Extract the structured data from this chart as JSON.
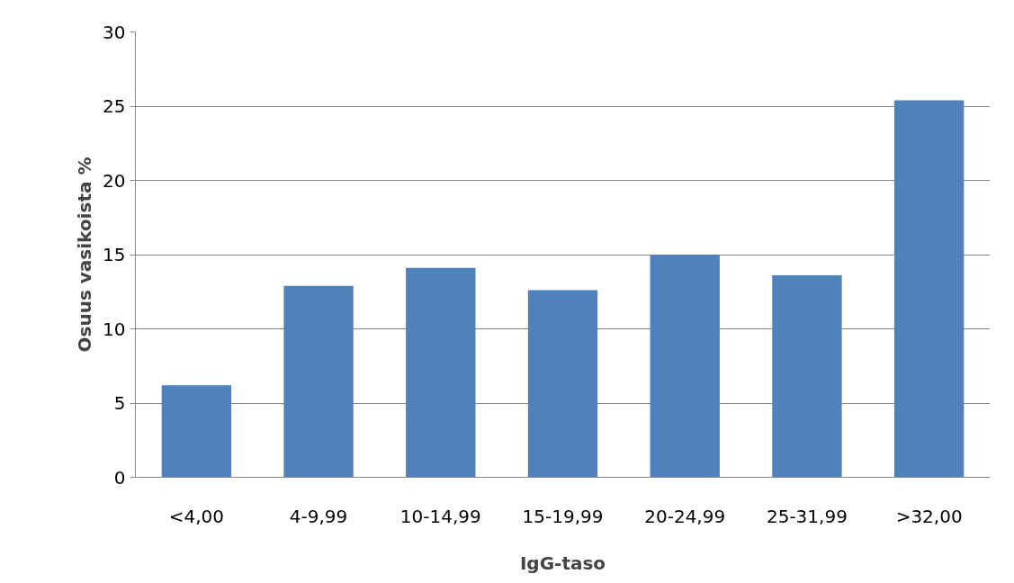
{
  "chart_data": {
    "type": "bar",
    "xlabel": "IgG-taso",
    "ylabel": "Osuus vasikoista %",
    "categories": [
      "<4,00",
      "4-9,99",
      "10-14,99",
      "15-19,99",
      "20-24,99",
      "25-31,99",
      ">32,00"
    ],
    "values": [
      6.2,
      12.9,
      14.1,
      12.6,
      15.0,
      13.6,
      25.4
    ],
    "color": "#4f81bd",
    "ylim": [
      0,
      30
    ],
    "yticks": [
      0,
      5,
      10,
      15,
      20,
      25,
      30
    ],
    "grid": "y"
  }
}
